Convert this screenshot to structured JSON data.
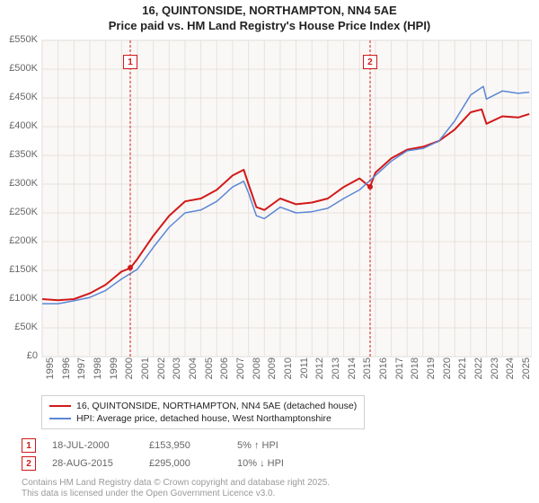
{
  "title": {
    "line1": "16, QUINTONSIDE, NORTHAMPTON, NN4 5AE",
    "line2": "Price paid vs. HM Land Registry's House Price Index (HPI)"
  },
  "chart": {
    "type": "line",
    "background": "#faf8f6",
    "grid_color": "#e6e1dc",
    "xlim": [
      1995,
      2025.8
    ],
    "ylim": [
      0,
      550000
    ],
    "ytick_step": 50000,
    "ytick_fmt_prefix": "£",
    "ytick_fmt_suffix": "K",
    "xticks": [
      1995,
      1996,
      1997,
      1998,
      1999,
      2000,
      2001,
      2002,
      2003,
      2004,
      2005,
      2006,
      2007,
      2008,
      2009,
      2010,
      2011,
      2012,
      2013,
      2014,
      2015,
      2016,
      2017,
      2018,
      2019,
      2020,
      2021,
      2022,
      2023,
      2024,
      2025
    ],
    "series": [
      {
        "key": "property",
        "label": "16, QUINTONSIDE, NORTHAMPTON, NN4 5AE (detached house)",
        "color": "#d11919",
        "width": 2,
        "data": [
          [
            1995,
            100000
          ],
          [
            1996,
            98000
          ],
          [
            1997,
            100000
          ],
          [
            1998,
            110000
          ],
          [
            1999,
            125000
          ],
          [
            2000,
            148000
          ],
          [
            2000.55,
            153950
          ],
          [
            2001,
            170000
          ],
          [
            2002,
            210000
          ],
          [
            2003,
            245000
          ],
          [
            2004,
            270000
          ],
          [
            2005,
            275000
          ],
          [
            2006,
            290000
          ],
          [
            2007,
            315000
          ],
          [
            2007.7,
            325000
          ],
          [
            2008,
            300000
          ],
          [
            2008.5,
            260000
          ],
          [
            2009,
            255000
          ],
          [
            2010,
            275000
          ],
          [
            2011,
            265000
          ],
          [
            2012,
            268000
          ],
          [
            2013,
            275000
          ],
          [
            2014,
            295000
          ],
          [
            2015,
            310000
          ],
          [
            2015.66,
            295000
          ],
          [
            2016,
            320000
          ],
          [
            2017,
            345000
          ],
          [
            2018,
            360000
          ],
          [
            2019,
            365000
          ],
          [
            2020,
            375000
          ],
          [
            2021,
            395000
          ],
          [
            2022,
            425000
          ],
          [
            2022.7,
            430000
          ],
          [
            2023,
            405000
          ],
          [
            2024,
            418000
          ],
          [
            2025,
            416000
          ],
          [
            2025.7,
            422000
          ]
        ]
      },
      {
        "key": "hpi",
        "label": "HPI: Average price, detached house, West Northamptonshire",
        "color": "#5b87d6",
        "width": 1.5,
        "data": [
          [
            1995,
            92000
          ],
          [
            1996,
            92000
          ],
          [
            1997,
            97000
          ],
          [
            1998,
            103000
          ],
          [
            1999,
            115000
          ],
          [
            2000,
            135000
          ],
          [
            2001,
            152000
          ],
          [
            2002,
            190000
          ],
          [
            2003,
            225000
          ],
          [
            2004,
            250000
          ],
          [
            2005,
            255000
          ],
          [
            2006,
            270000
          ],
          [
            2007,
            295000
          ],
          [
            2007.7,
            305000
          ],
          [
            2008,
            285000
          ],
          [
            2008.5,
            245000
          ],
          [
            2009,
            240000
          ],
          [
            2010,
            260000
          ],
          [
            2011,
            250000
          ],
          [
            2012,
            252000
          ],
          [
            2013,
            258000
          ],
          [
            2014,
            275000
          ],
          [
            2015,
            290000
          ],
          [
            2016,
            315000
          ],
          [
            2017,
            340000
          ],
          [
            2018,
            358000
          ],
          [
            2019,
            362000
          ],
          [
            2020,
            375000
          ],
          [
            2021,
            410000
          ],
          [
            2022,
            455000
          ],
          [
            2022.8,
            470000
          ],
          [
            2023,
            448000
          ],
          [
            2024,
            462000
          ],
          [
            2025,
            458000
          ],
          [
            2025.7,
            460000
          ]
        ]
      }
    ],
    "sale_markers": [
      {
        "n": "1",
        "x": 2000.55,
        "y": 153950,
        "color": "#d11919"
      },
      {
        "n": "2",
        "x": 2015.66,
        "y": 295000,
        "color": "#d11919"
      }
    ],
    "marker_box_top_offset": 16
  },
  "legend": {
    "items": [
      {
        "color": "#d11919",
        "label": "16, QUINTONSIDE, NORTHAMPTON, NN4 5AE (detached house)"
      },
      {
        "color": "#5b87d6",
        "label": "HPI: Average price, detached house, West Northamptonshire"
      }
    ]
  },
  "sales": [
    {
      "n": "1",
      "color": "#d11919",
      "date": "18-JUL-2000",
      "price": "£153,950",
      "delta": "5% ↑ HPI"
    },
    {
      "n": "2",
      "color": "#d11919",
      "date": "28-AUG-2015",
      "price": "£295,000",
      "delta": "10% ↓ HPI"
    }
  ],
  "footer": {
    "line1": "Contains HM Land Registry data © Crown copyright and database right 2025.",
    "line2": "This data is licensed under the Open Government Licence v3.0."
  }
}
